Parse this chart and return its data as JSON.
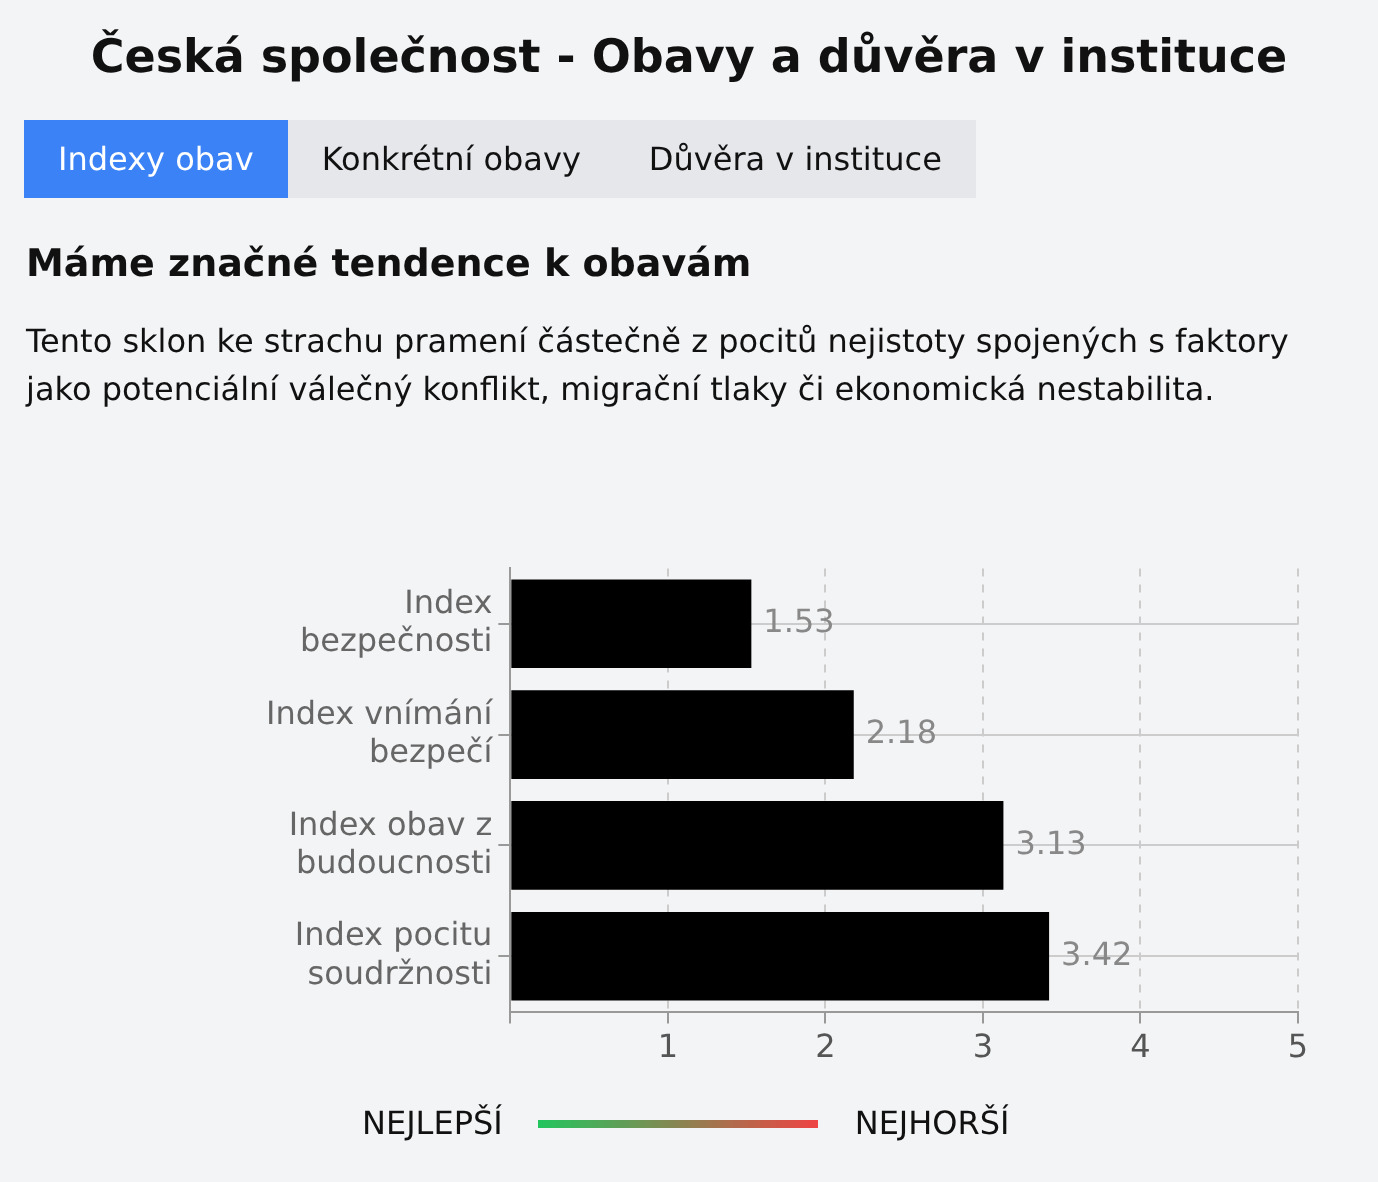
{
  "chart_data": {
    "type": "bar",
    "orientation": "horizontal",
    "title": "Česká společnost - Obavy a důvěra v instituce",
    "subtitle": "Máme značné tendence k obavám",
    "annotations": [
      "Indexy obav",
      "Konkrétní obavy",
      "Důvěra v instituce",
      "Tento sklon ke strachu pramení částečně z pocitů nejistoty spojených s faktory jako potenciální válečný konflikt, migrační tlaky či ekonomická nestabilita.",
      "NEJLEPŠÍ",
      "NEJHORŠÍ"
    ],
    "categories": [
      "Index bezpečnosti",
      "Index vnímání bezpečí",
      "Index obav z budoucnosti",
      "Index pocitu soudržnosti"
    ],
    "values": [
      1.53,
      2.18,
      3.13,
      3.42
    ],
    "color": "#000000",
    "xlim": [
      0,
      5
    ],
    "xticks": [
      {
        "value": 0,
        "label": null
      },
      1,
      2,
      3,
      4,
      5
    ],
    "grid": true,
    "data_labels": true
  }
}
